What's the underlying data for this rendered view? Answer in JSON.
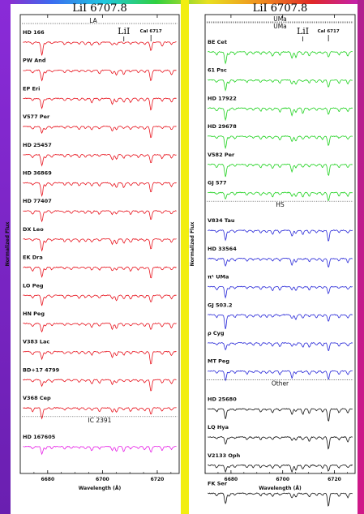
{
  "colors": {
    "LA": "#e8141e",
    "IC 2391": "#e61ee6",
    "UMa": "#1fd21f",
    "HS": "#2828d8",
    "Other": "#111111"
  },
  "chart_data": [
    {
      "type": "line",
      "title": "LiI  6707.8",
      "xlabel": "Wavelength (Å)",
      "ylabel": "Normalized Flux",
      "xlim": [
        6670,
        6728
      ],
      "xticks": [
        6680,
        6700,
        6720
      ],
      "annotations": [
        "LiI",
        "CaI 6717"
      ],
      "groups": [
        {
          "name": "LA",
          "color": "#e8141e",
          "series": [
            "HD 166",
            "PW And",
            "EP Eri",
            "V577 Per",
            "HD 25457",
            "HD 36869",
            "HD 77407",
            "DX Leo",
            "EK Dra",
            "LO Peg",
            "HN Peg",
            "V383 Lac",
            "BD+17 4799",
            "V368 Cep"
          ]
        },
        {
          "name": "IC 2391",
          "color": "#e61ee6",
          "series": [
            "HD 167605"
          ]
        }
      ]
    },
    {
      "type": "line",
      "title": "LiI  6707.8",
      "xlabel": "Wavelength (Å)",
      "ylabel": "Normalized Flux",
      "xlim": [
        6670,
        6728
      ],
      "xticks": [
        6680,
        6700,
        6720
      ],
      "annotations": [
        "LiI",
        "CaI 6717"
      ],
      "groups": [
        {
          "name": "UMa",
          "color": "#1fd21f",
          "series": [
            "BE Cet",
            "61 Psc",
            "HD 17922",
            "HD 29678",
            "V582 Per",
            "GJ 577"
          ]
        },
        {
          "name": "HS",
          "color": "#2828d8",
          "series": [
            "V834 Tau",
            "HD 33564",
            "π¹ UMa",
            "GJ 503.2",
            "ρ Cyg",
            "MT Peg"
          ]
        },
        {
          "name": "Other",
          "color": "#111111",
          "series": [
            "HD 25680",
            "LQ Hya",
            "V2133 Oph",
            "FK Ser"
          ]
        }
      ]
    }
  ]
}
